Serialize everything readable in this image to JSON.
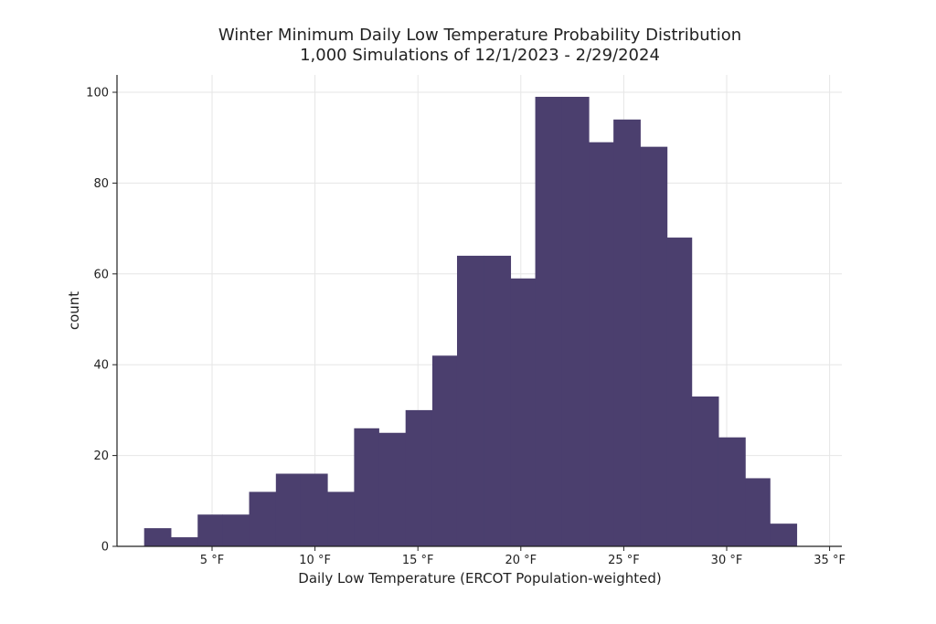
{
  "chart_data": {
    "type": "bar",
    "title": "Winter Minimum Daily Low Temperature Probability Distribution",
    "subtitle": "1,000 Simulations of 12/1/2023 - 2/29/2024",
    "xlabel": "Daily Low Temperature (ERCOT Population-weighted)",
    "ylabel": "count",
    "x_unit": "°F",
    "xlim": [
      -0.5,
      35.5
    ],
    "ylim": [
      0,
      104
    ],
    "xticks": [
      5,
      10,
      15,
      20,
      25,
      30,
      35
    ],
    "xtick_labels": [
      "5 °F",
      "10 °F",
      "15 °F",
      "20 °F",
      "25 °F",
      "30 °F",
      "35 °F"
    ],
    "yticks": [
      0,
      20,
      40,
      60,
      80,
      100
    ],
    "ytick_labels": [
      "0",
      "20",
      "40",
      "60",
      "80",
      "100"
    ],
    "grid": true,
    "bar_color": "#4b3f6e",
    "bins": [
      {
        "x0": 1.7,
        "x1": 3.0,
        "value": 4
      },
      {
        "x0": 3.0,
        "x1": 4.3,
        "value": 2
      },
      {
        "x0": 4.3,
        "x1": 5.5,
        "value": 7
      },
      {
        "x0": 5.5,
        "x1": 6.8,
        "value": 7
      },
      {
        "x0": 6.8,
        "x1": 8.1,
        "value": 12
      },
      {
        "x0": 8.1,
        "x1": 9.3,
        "value": 16
      },
      {
        "x0": 9.3,
        "x1": 10.6,
        "value": 16
      },
      {
        "x0": 10.6,
        "x1": 11.9,
        "value": 12
      },
      {
        "x0": 11.9,
        "x1": 13.1,
        "value": 26
      },
      {
        "x0": 13.1,
        "x1": 14.4,
        "value": 25
      },
      {
        "x0": 14.4,
        "x1": 15.7,
        "value": 30
      },
      {
        "x0": 15.7,
        "x1": 16.9,
        "value": 42
      },
      {
        "x0": 16.9,
        "x1": 18.2,
        "value": 64
      },
      {
        "x0": 18.2,
        "x1": 19.5,
        "value": 64
      },
      {
        "x0": 19.5,
        "x1": 20.7,
        "value": 59
      },
      {
        "x0": 20.7,
        "x1": 22.0,
        "value": 99
      },
      {
        "x0": 22.0,
        "x1": 23.3,
        "value": 99
      },
      {
        "x0": 23.3,
        "x1": 24.5,
        "value": 89
      },
      {
        "x0": 24.5,
        "x1": 25.8,
        "value": 94
      },
      {
        "x0": 25.8,
        "x1": 27.1,
        "value": 88
      },
      {
        "x0": 27.1,
        "x1": 28.3,
        "value": 68
      },
      {
        "x0": 28.3,
        "x1": 29.6,
        "value": 33
      },
      {
        "x0": 29.6,
        "x1": 30.9,
        "value": 24
      },
      {
        "x0": 30.9,
        "x1": 32.1,
        "value": 15
      },
      {
        "x0": 32.1,
        "x1": 33.4,
        "value": 5
      }
    ]
  }
}
